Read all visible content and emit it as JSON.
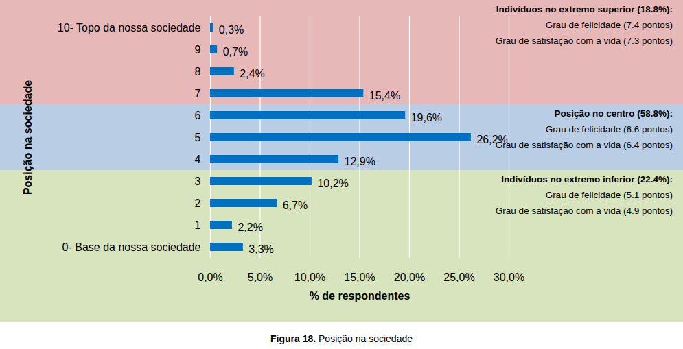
{
  "chart_data": {
    "type": "bar",
    "orientation": "horizontal",
    "categories": [
      "10- Topo da nossa sociedade",
      "9",
      "8",
      "7",
      "6",
      "5",
      "4",
      "3",
      "2",
      "1",
      "0- Base da nossa sociedade"
    ],
    "values": [
      0.3,
      0.7,
      2.4,
      15.4,
      19.6,
      26.2,
      12.9,
      10.2,
      6.7,
      2.2,
      3.3
    ],
    "value_labels": [
      "0,3%",
      "0,7%",
      "2,4%",
      "15,4%",
      "19,6%",
      "26,2%",
      "12,9%",
      "10,2%",
      "6,7%",
      "2,2%",
      "3,3%"
    ],
    "color": "#0070c0",
    "data_labels": true,
    "xlim": [
      0,
      30
    ],
    "xticks": [
      {
        "value": 0,
        "label": "0,0%"
      },
      {
        "value": 5,
        "label": "5,0%"
      },
      {
        "value": 10,
        "label": "10,0%"
      },
      {
        "value": 15,
        "label": "15,0%"
      },
      {
        "value": 20,
        "label": "20,0%"
      },
      {
        "value": 25,
        "label": "25,0%"
      },
      {
        "value": 30,
        "label": "30,0%"
      }
    ],
    "grid": true,
    "xlabel": "% de respondentes",
    "ylabel": "Posição na sociedade",
    "groups": [
      {
        "name": "Indivíduos no extremo superior (18.8%):",
        "lines": [
          "Grau de felicidade (7.4 pontos)",
          "Grau de satisfação com a vida (7.3 pontos)"
        ],
        "categories": [
          "10- Topo da nossa sociedade",
          "9",
          "8",
          "7"
        ],
        "color": "#e6b9b8"
      },
      {
        "name": "Posição no centro (58.8%):",
        "lines": [
          "Grau de felicidade (6.6 pontos)",
          "Grau de satisfação com a vida (6.4 pontos)"
        ],
        "categories": [
          "6",
          "5",
          "4"
        ],
        "color": "#b9cde5"
      },
      {
        "name": "Indivíduos no extremo inferior (22.4%):",
        "lines": [
          "Grau de felicidade (5.1 pontos)",
          "Grau de satisfação com a vida (4.9 pontos)"
        ],
        "categories": [
          "3",
          "2",
          "1",
          "0- Base da nossa sociedade"
        ],
        "color": "#d7e4bd"
      }
    ],
    "caption": {
      "label": "Figura 18.",
      "text": "Posição na sociedade"
    }
  }
}
